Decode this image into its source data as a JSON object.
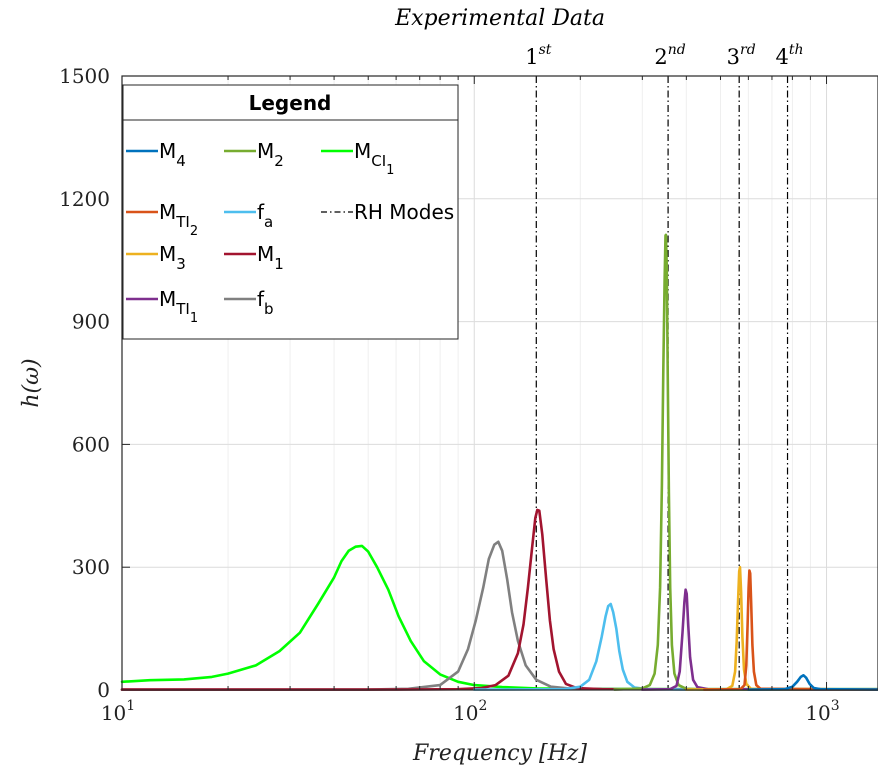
{
  "chart_data": {
    "type": "line",
    "title": "Experimental Data",
    "xlabel": "Frequency [Hz]",
    "ylabel": "h(ω)",
    "x_scale": "log",
    "xlim": [
      10,
      1400
    ],
    "ylim": [
      0,
      1500
    ],
    "x_ticks": [
      {
        "value": 10,
        "base": "10",
        "exp": "1"
      },
      {
        "value": 100,
        "base": "10",
        "exp": "2"
      },
      {
        "value": 1000,
        "base": "10",
        "exp": "3"
      }
    ],
    "y_ticks": [
      0,
      300,
      600,
      900,
      1200,
      1500
    ],
    "grid": true,
    "legend": {
      "title": "Legend",
      "placement": "top-left",
      "rows": [
        [
          {
            "name": "M",
            "sub": "4",
            "color": "#0072BD"
          },
          {
            "name": "M",
            "sub": "2",
            "color": "#77AC30"
          },
          {
            "name": "M",
            "sub": "CI",
            "subsub": "1",
            "color": "#00FF00"
          }
        ],
        [
          {
            "name": "M",
            "sub": "TI",
            "subsub": "2",
            "color": "#D95319"
          },
          {
            "name": "f",
            "sub": "a",
            "color": "#4DBEEE"
          },
          {
            "name": "RH Modes",
            "dash": true,
            "color": "#000000"
          }
        ],
        [
          {
            "name": "M",
            "sub": "3",
            "color": "#EDB120"
          },
          {
            "name": "M",
            "sub": "1",
            "color": "#A2142F"
          }
        ],
        [
          {
            "name": "M",
            "sub": "TI",
            "subsub": "1",
            "color": "#7E2F8E"
          },
          {
            "name": "f",
            "sub": "b",
            "color": "#808080"
          }
        ]
      ]
    },
    "rh_modes": [
      {
        "x": 150,
        "label": "1",
        "sup": "st"
      },
      {
        "x": 355,
        "label": "2",
        "sup": "nd"
      },
      {
        "x": 565,
        "label": "3",
        "sup": "rd"
      },
      {
        "x": 775,
        "label": "4",
        "sup": "th"
      }
    ],
    "series": [
      {
        "name": "M_CI_1",
        "color": "#00FF00",
        "points": [
          [
            10,
            20
          ],
          [
            12,
            24
          ],
          [
            15,
            26
          ],
          [
            18,
            32
          ],
          [
            20,
            40
          ],
          [
            24,
            60
          ],
          [
            28,
            95
          ],
          [
            32,
            140
          ],
          [
            36,
            210
          ],
          [
            40,
            275
          ],
          [
            42,
            315
          ],
          [
            44,
            340
          ],
          [
            46,
            350
          ],
          [
            48,
            352
          ],
          [
            50,
            338
          ],
          [
            53,
            300
          ],
          [
            57,
            245
          ],
          [
            61,
            180
          ],
          [
            66,
            120
          ],
          [
            72,
            70
          ],
          [
            80,
            38
          ],
          [
            90,
            20
          ],
          [
            100,
            12
          ],
          [
            120,
            7
          ],
          [
            150,
            4
          ],
          [
            200,
            3
          ],
          [
            400,
            2
          ],
          [
            1400,
            2
          ]
        ]
      },
      {
        "name": "f_b",
        "color": "#808080",
        "points": [
          [
            10,
            1
          ],
          [
            50,
            1
          ],
          [
            65,
            3
          ],
          [
            80,
            12
          ],
          [
            90,
            45
          ],
          [
            96,
            100
          ],
          [
            101,
            170
          ],
          [
            106,
            250
          ],
          [
            110,
            320
          ],
          [
            114,
            355
          ],
          [
            117,
            362
          ],
          [
            120,
            340
          ],
          [
            124,
            270
          ],
          [
            128,
            190
          ],
          [
            133,
            120
          ],
          [
            140,
            60
          ],
          [
            150,
            25
          ],
          [
            165,
            8
          ],
          [
            190,
            3
          ],
          [
            300,
            2
          ],
          [
            1400,
            2
          ]
        ]
      },
      {
        "name": "M_1",
        "color": "#A2142F",
        "points": [
          [
            10,
            1
          ],
          [
            60,
            1
          ],
          [
            90,
            2
          ],
          [
            105,
            5
          ],
          [
            115,
            12
          ],
          [
            125,
            35
          ],
          [
            133,
            90
          ],
          [
            138,
            160
          ],
          [
            142,
            250
          ],
          [
            146,
            350
          ],
          [
            149,
            420
          ],
          [
            151,
            440
          ],
          [
            153,
            438
          ],
          [
            156,
            380
          ],
          [
            160,
            270
          ],
          [
            164,
            170
          ],
          [
            168,
            100
          ],
          [
            174,
            45
          ],
          [
            182,
            15
          ],
          [
            195,
            5
          ],
          [
            230,
            2
          ],
          [
            1400,
            1
          ]
        ]
      },
      {
        "name": "f_a",
        "color": "#4DBEEE",
        "points": [
          [
            100,
            1
          ],
          [
            180,
            2
          ],
          [
            200,
            8
          ],
          [
            212,
            25
          ],
          [
            222,
            70
          ],
          [
            230,
            130
          ],
          [
            236,
            180
          ],
          [
            240,
            205
          ],
          [
            244,
            210
          ],
          [
            248,
            190
          ],
          [
            253,
            150
          ],
          [
            258,
            95
          ],
          [
            264,
            50
          ],
          [
            272,
            20
          ],
          [
            285,
            6
          ],
          [
            310,
            2
          ],
          [
            400,
            1
          ],
          [
            1400,
            1
          ]
        ]
      },
      {
        "name": "M_2",
        "color": "#77AC30",
        "points": [
          [
            250,
            1
          ],
          [
            300,
            4
          ],
          [
            315,
            12
          ],
          [
            325,
            40
          ],
          [
            332,
            110
          ],
          [
            337,
            250
          ],
          [
            341,
            500
          ],
          [
            344,
            780
          ],
          [
            347,
            1000
          ],
          [
            349,
            1110
          ],
          [
            350,
            1112
          ],
          [
            352,
            1030
          ],
          [
            354,
            780
          ],
          [
            357,
            480
          ],
          [
            360,
            250
          ],
          [
            364,
            110
          ],
          [
            370,
            40
          ],
          [
            380,
            12
          ],
          [
            400,
            3
          ],
          [
            450,
            1
          ],
          [
            1400,
            1
          ]
        ]
      },
      {
        "name": "M_TI_1",
        "color": "#7E2F8E",
        "points": [
          [
            300,
            1
          ],
          [
            360,
            2
          ],
          [
            375,
            10
          ],
          [
            383,
            45
          ],
          [
            390,
            140
          ],
          [
            395,
            215
          ],
          [
            398,
            245
          ],
          [
            401,
            235
          ],
          [
            405,
            160
          ],
          [
            410,
            80
          ],
          [
            418,
            25
          ],
          [
            430,
            7
          ],
          [
            460,
            2
          ],
          [
            1400,
            1
          ]
        ]
      },
      {
        "name": "M_3",
        "color": "#EDB120",
        "points": [
          [
            400,
            1
          ],
          [
            520,
            2
          ],
          [
            540,
            10
          ],
          [
            550,
            45
          ],
          [
            556,
            120
          ],
          [
            561,
            220
          ],
          [
            565,
            290
          ],
          [
            568,
            300
          ],
          [
            572,
            240
          ],
          [
            577,
            130
          ],
          [
            583,
            50
          ],
          [
            592,
            15
          ],
          [
            610,
            3
          ],
          [
            1400,
            1
          ]
        ]
      },
      {
        "name": "M_TI_2",
        "color": "#D95319",
        "points": [
          [
            450,
            1
          ],
          [
            570,
            2
          ],
          [
            585,
            12
          ],
          [
            592,
            60
          ],
          [
            597,
            160
          ],
          [
            601,
            250
          ],
          [
            604,
            292
          ],
          [
            607,
            285
          ],
          [
            611,
            210
          ],
          [
            616,
            110
          ],
          [
            622,
            45
          ],
          [
            632,
            12
          ],
          [
            650,
            3
          ],
          [
            1400,
            1
          ]
        ]
      },
      {
        "name": "M_4",
        "color": "#0072BD",
        "points": [
          [
            600,
            1
          ],
          [
            760,
            2
          ],
          [
            800,
            8
          ],
          [
            825,
            20
          ],
          [
            845,
            32
          ],
          [
            860,
            36
          ],
          [
            875,
            30
          ],
          [
            895,
            15
          ],
          [
            920,
            5
          ],
          [
            960,
            2
          ],
          [
            1400,
            1
          ]
        ]
      }
    ]
  }
}
